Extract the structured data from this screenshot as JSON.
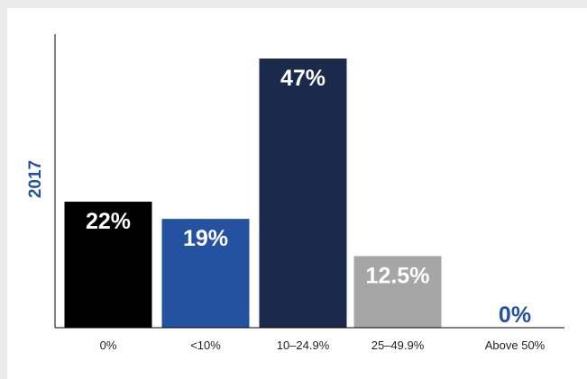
{
  "chart_data": {
    "type": "bar",
    "ylabel": "2017",
    "categories": [
      "0%",
      "<10%",
      "10–24.9%",
      "25–49.9%",
      "Above 50%"
    ],
    "values": [
      22,
      19,
      47,
      12.5,
      0
    ],
    "value_labels": [
      "22%",
      "19%",
      "47%",
      "12.5%",
      "0%"
    ],
    "colors": [
      "#000000",
      "#2452a0",
      "#1b2a4a",
      "#a6a6a6",
      "#2452a0"
    ],
    "label_colors": [
      "#ffffff",
      "#ffffff",
      "#ffffff",
      "#ffffff",
      "#2452a0"
    ],
    "ylim": [
      0,
      50
    ],
    "grid": false,
    "legend": "none"
  }
}
